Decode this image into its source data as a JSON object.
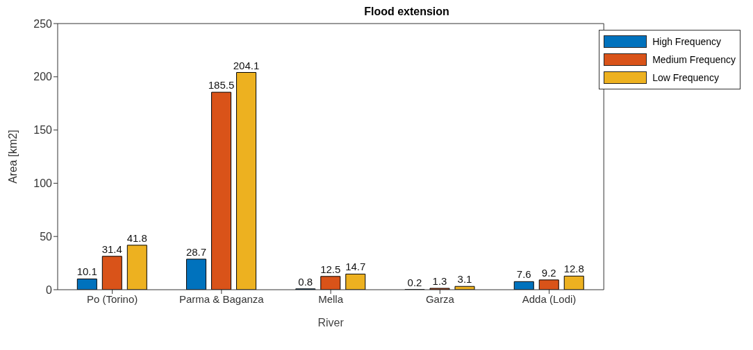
{
  "chart_data": {
    "type": "bar",
    "title": "Flood extension",
    "xlabel": "River",
    "ylabel": "Area [km2]",
    "categories": [
      "Po (Torino)",
      "Parma & Baganza",
      "Mella",
      "Garza",
      "Adda (Lodi)"
    ],
    "series": [
      {
        "name": "High Frequency",
        "color": "#0072bd",
        "values": [
          10.1,
          28.7,
          0.8,
          0.2,
          7.6
        ]
      },
      {
        "name": "Medium Frequency",
        "color": "#d95319",
        "values": [
          31.4,
          185.5,
          12.5,
          1.3,
          9.2
        ]
      },
      {
        "name": "Low Frequency",
        "color": "#edb120",
        "values": [
          41.8,
          204.1,
          14.7,
          3.1,
          12.8
        ]
      }
    ],
    "ylim": [
      0,
      250
    ],
    "yticks": [
      0,
      50,
      100,
      150,
      200,
      250
    ],
    "grid": false,
    "legend": "top right",
    "data_labels": true
  }
}
